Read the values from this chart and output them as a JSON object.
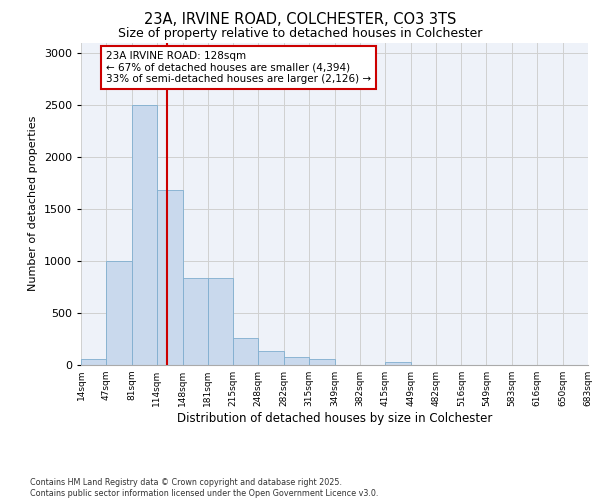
{
  "title_line1": "23A, IRVINE ROAD, COLCHESTER, CO3 3TS",
  "title_line2": "Size of property relative to detached houses in Colchester",
  "xlabel": "Distribution of detached houses by size in Colchester",
  "ylabel": "Number of detached properties",
  "footnote": "Contains HM Land Registry data © Crown copyright and database right 2025.\nContains public sector information licensed under the Open Government Licence v3.0.",
  "bar_edges": [
    14,
    47,
    81,
    114,
    148,
    181,
    215,
    248,
    282,
    315,
    349,
    382,
    415,
    449,
    482,
    516,
    549,
    583,
    616,
    650,
    683
  ],
  "bar_heights": [
    55,
    1000,
    2500,
    1680,
    840,
    840,
    255,
    130,
    75,
    55,
    0,
    0,
    28,
    0,
    0,
    0,
    0,
    0,
    0,
    0
  ],
  "bar_color": "#c9d9ed",
  "bar_edge_color": "#7faecf",
  "vline_x": 128,
  "vline_color": "#cc0000",
  "annotation_text": "23A IRVINE ROAD: 128sqm\n← 67% of detached houses are smaller (4,394)\n33% of semi-detached houses are larger (2,126) →",
  "annotation_box_color": "#cc0000",
  "ylim": [
    0,
    3100
  ],
  "yticks": [
    0,
    500,
    1000,
    1500,
    2000,
    2500,
    3000
  ],
  "grid_color": "#d0d0d0",
  "background_color": "#eef2f9",
  "tick_labels": [
    "14sqm",
    "47sqm",
    "81sqm",
    "114sqm",
    "148sqm",
    "181sqm",
    "215sqm",
    "248sqm",
    "282sqm",
    "315sqm",
    "349sqm",
    "382sqm",
    "415sqm",
    "449sqm",
    "482sqm",
    "516sqm",
    "549sqm",
    "583sqm",
    "616sqm",
    "650sqm",
    "683sqm"
  ]
}
